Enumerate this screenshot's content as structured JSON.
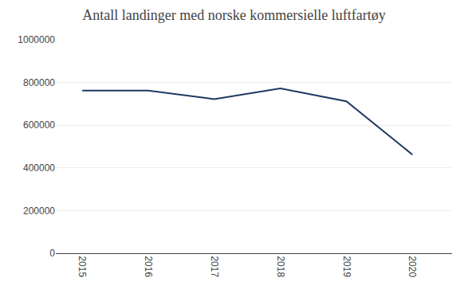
{
  "chart_data": {
    "type": "line",
    "title": "Antall landinger med norske kommersielle luftfartøy",
    "x": [
      2015,
      2016,
      2017,
      2018,
      2019,
      2020
    ],
    "values": [
      762000,
      762000,
      722000,
      772000,
      712000,
      462000
    ],
    "color": "#1F3864",
    "xlim": [
      2014.6,
      2020.6
    ],
    "xticks": [
      2015,
      2016,
      2017,
      2018,
      2019,
      2020
    ],
    "ylim": [
      0,
      1000000
    ],
    "yticks": [
      0,
      200000,
      400000,
      600000,
      800000,
      1000000
    ],
    "grid": true
  }
}
